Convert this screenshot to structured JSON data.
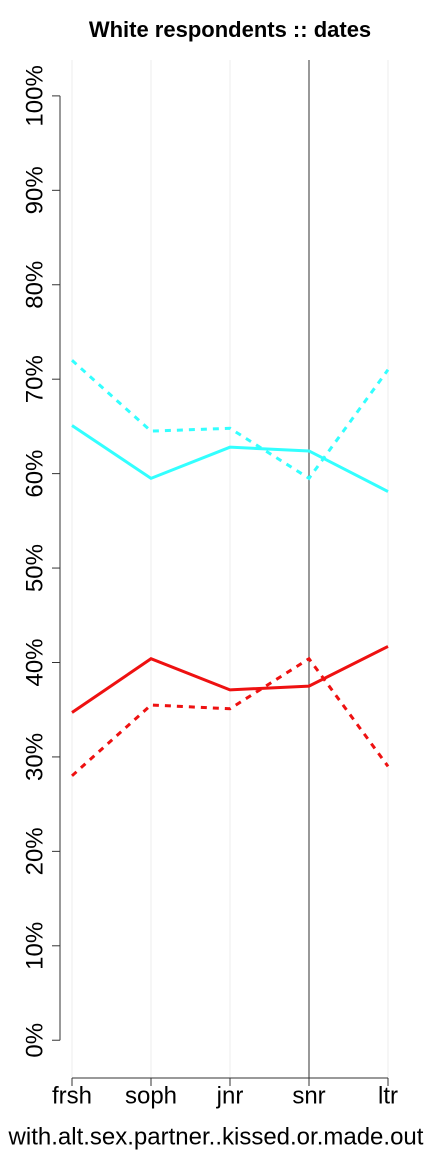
{
  "chart_data": {
    "type": "line",
    "title": "White respondents :: dates",
    "x_label": "with.alt.sex.partner..kissed.or.made.out",
    "categories": [
      "frsh",
      "soph",
      "jnr",
      "snr",
      "ltr"
    ],
    "series": [
      {
        "color": "#33ffff",
        "dashed": false,
        "values": [
          65.1,
          59.5,
          62.8,
          62.4,
          58.1
        ]
      },
      {
        "color": "#33ffff",
        "dashed": true,
        "values": [
          72.0,
          64.5,
          64.8,
          59.5,
          71.0
        ]
      },
      {
        "color": "#ee1111",
        "dashed": false,
        "values": [
          34.7,
          40.4,
          37.1,
          37.5,
          41.7
        ]
      },
      {
        "color": "#ee1111",
        "dashed": true,
        "values": [
          28.0,
          35.5,
          35.1,
          40.4,
          29.0
        ]
      }
    ],
    "ylim": [
      -4,
      103.8
    ],
    "yticks": [
      {
        "value": 0,
        "label": "0%"
      },
      {
        "value": 10,
        "label": "10%"
      },
      {
        "value": 20,
        "label": "20%"
      },
      {
        "value": 30,
        "label": "30%"
      },
      {
        "value": 40,
        "label": "40%"
      },
      {
        "value": 50,
        "label": "50%"
      },
      {
        "value": 60,
        "label": "60%"
      },
      {
        "value": 70,
        "label": "70%"
      },
      {
        "value": 80,
        "label": "80%"
      },
      {
        "value": 90,
        "label": "90%"
      },
      {
        "value": 100,
        "label": "100%"
      }
    ],
    "grid": "x",
    "reference_line": "snr"
  }
}
